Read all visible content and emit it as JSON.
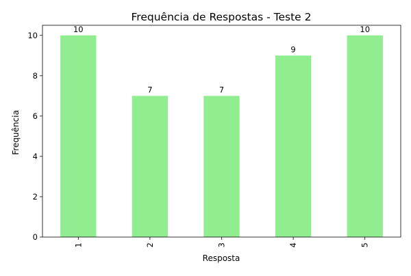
{
  "chart_data": {
    "type": "bar",
    "title": "Frequência de Respostas - Teste 2",
    "xlabel": "Resposta",
    "ylabel": "Frequência",
    "categories": [
      "1",
      "2",
      "3",
      "4",
      "5"
    ],
    "values": [
      10,
      7,
      7,
      9,
      10
    ],
    "data_labels": [
      "10",
      "7",
      "7",
      "9",
      "10"
    ],
    "yticks": [
      0,
      2,
      4,
      6,
      8,
      10
    ],
    "ylim": [
      0,
      10.5
    ],
    "bar_color": "#90ee90",
    "grid": false,
    "legend": "none",
    "x_tick_rotation": "vertical"
  }
}
